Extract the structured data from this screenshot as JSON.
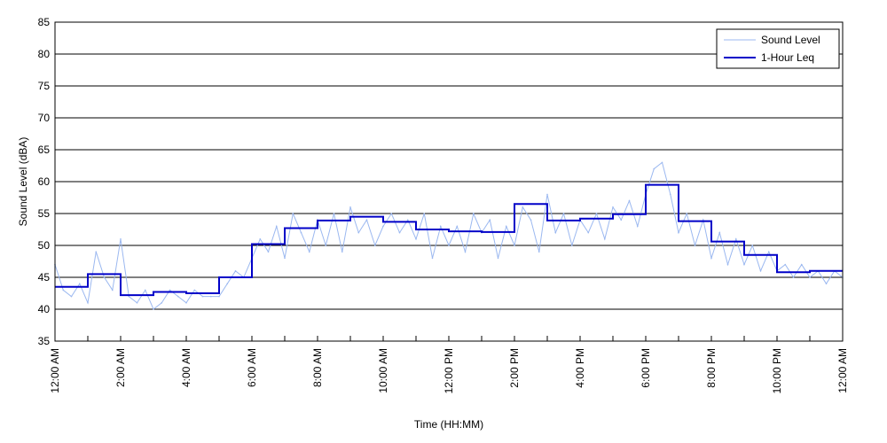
{
  "chart_data": {
    "type": "line",
    "xlabel": "Time (HH:MM)",
    "ylabel": "Sound Level (dBA)",
    "xlim": [
      0,
      24
    ],
    "ylim": [
      35,
      85
    ],
    "y_ticks": [
      35,
      40,
      45,
      50,
      55,
      60,
      65,
      70,
      75,
      80,
      85
    ],
    "x_ticks": [
      0,
      1,
      2,
      3,
      4,
      5,
      6,
      7,
      8,
      9,
      10,
      11,
      12,
      13,
      14,
      15,
      16,
      17,
      18,
      19,
      20,
      21,
      22,
      23,
      24
    ],
    "x_tick_labels": [
      {
        "hour": 0,
        "label": "12:00 AM"
      },
      {
        "hour": 2,
        "label": "2:00 AM"
      },
      {
        "hour": 4,
        "label": "4:00 AM"
      },
      {
        "hour": 6,
        "label": "6:00 AM"
      },
      {
        "hour": 8,
        "label": "8:00 AM"
      },
      {
        "hour": 10,
        "label": "10:00 AM"
      },
      {
        "hour": 12,
        "label": "12:00 PM"
      },
      {
        "hour": 14,
        "label": "2:00 PM"
      },
      {
        "hour": 16,
        "label": "4:00 PM"
      },
      {
        "hour": 18,
        "label": "6:00 PM"
      },
      {
        "hour": 20,
        "label": "8:00 PM"
      },
      {
        "hour": 22,
        "label": "10:00 PM"
      },
      {
        "hour": 24,
        "label": "12:00 AM"
      }
    ],
    "grid": "horizontal",
    "legend_position": "top-right",
    "series": [
      {
        "name": "Sound Level",
        "style": "thin-line",
        "color": "#9bb8f0",
        "x": [
          0.0,
          0.25,
          0.5,
          0.75,
          1.0,
          1.25,
          1.5,
          1.75,
          2.0,
          2.25,
          2.5,
          2.75,
          3.0,
          3.25,
          3.5,
          3.75,
          4.0,
          4.25,
          4.5,
          4.75,
          5.0,
          5.25,
          5.5,
          5.75,
          6.0,
          6.25,
          6.5,
          6.75,
          7.0,
          7.25,
          7.5,
          7.75,
          8.0,
          8.25,
          8.5,
          8.75,
          9.0,
          9.25,
          9.5,
          9.75,
          10.0,
          10.25,
          10.5,
          10.75,
          11.0,
          11.25,
          11.5,
          11.75,
          12.0,
          12.25,
          12.5,
          12.75,
          13.0,
          13.25,
          13.5,
          13.75,
          14.0,
          14.25,
          14.5,
          14.75,
          15.0,
          15.25,
          15.5,
          15.75,
          16.0,
          16.25,
          16.5,
          16.75,
          17.0,
          17.25,
          17.5,
          17.75,
          18.0,
          18.25,
          18.5,
          18.75,
          19.0,
          19.25,
          19.5,
          19.75,
          20.0,
          20.25,
          20.5,
          20.75,
          21.0,
          21.25,
          21.5,
          21.75,
          22.0,
          22.25,
          22.5,
          22.75,
          23.0,
          23.25,
          23.5,
          23.75,
          24.0
        ],
        "values": [
          47,
          43,
          42,
          44,
          41,
          49,
          45,
          43,
          51,
          42,
          41,
          43,
          40,
          41,
          43,
          42,
          41,
          43,
          42,
          42,
          42,
          44,
          46,
          45,
          48,
          51,
          49,
          53,
          48,
          55,
          52,
          49,
          54,
          50,
          55,
          49,
          56,
          52,
          54,
          50,
          53,
          55,
          52,
          54,
          51,
          55,
          48,
          53,
          50,
          53,
          49,
          55,
          52,
          54,
          48,
          53,
          50,
          56,
          54,
          49,
          58,
          52,
          55,
          50,
          54,
          52,
          55,
          51,
          56,
          54,
          57,
          53,
          58,
          62,
          63,
          58,
          52,
          55,
          50,
          54,
          48,
          52,
          47,
          51,
          47,
          50,
          46,
          49,
          46,
          47,
          45,
          47,
          45,
          46,
          44,
          46,
          45
        ]
      },
      {
        "name": "1-Hour Leq",
        "style": "step",
        "color": "#0000c8",
        "hours": [
          0,
          1,
          2,
          3,
          4,
          5,
          6,
          7,
          8,
          9,
          10,
          11,
          12,
          13,
          14,
          15,
          16,
          17,
          18,
          19,
          20,
          21,
          22,
          23
        ],
        "values": [
          43.5,
          45.5,
          42.2,
          42.7,
          42.5,
          45.0,
          50.2,
          52.7,
          53.9,
          54.5,
          53.7,
          52.5,
          52.2,
          52.1,
          56.5,
          53.9,
          54.2,
          54.9,
          59.5,
          53.8,
          50.6,
          48.5,
          45.8,
          46.0
        ]
      }
    ]
  }
}
